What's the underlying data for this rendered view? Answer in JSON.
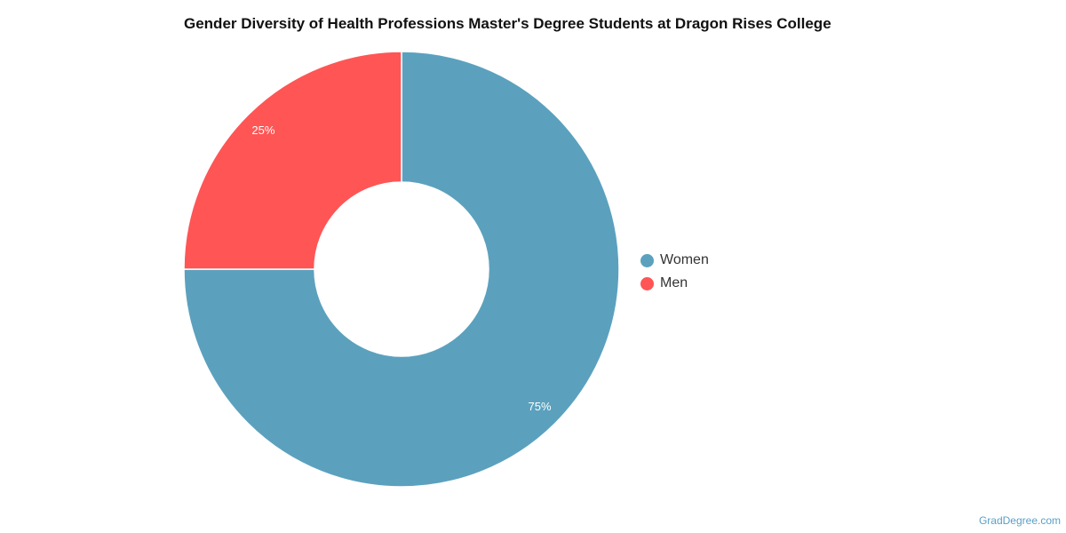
{
  "chart_data": {
    "type": "pie",
    "title": "Gender Diversity of Health Professions Master's Degree Students at Dragon Rises College",
    "donut": true,
    "legend_position": "right",
    "slices": [
      {
        "label": "Women",
        "value": 75,
        "display": "75%",
        "color": "#5ba1be"
      },
      {
        "label": "Men",
        "value": 25,
        "display": "25%",
        "color": "#ff5555"
      }
    ]
  },
  "watermark": "GradDegree.com"
}
